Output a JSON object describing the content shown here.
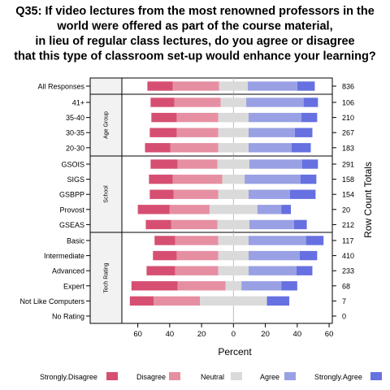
{
  "chart_data": {
    "type": "bar",
    "subtype": "diverging-stacked-likert",
    "title_lines": [
      "Q35: If video lectures from the most renowned professors in the",
      "world were offered as part of the course material,",
      "in lieu of regular class lectures, do you agree or disagree",
      "that this type of classroom set-up would enhance your learning?"
    ],
    "xlabel": "Percent",
    "right_axis_label": "Row Count Totals",
    "xlim": [
      -70,
      62
    ],
    "xticks": [
      60,
      40,
      20,
      0,
      20,
      40,
      60
    ],
    "xtick_values": [
      -60,
      -40,
      -20,
      0,
      20,
      40,
      60
    ],
    "legend_placement": "bottom",
    "series": [
      {
        "name": "Strongly.Disagree",
        "color": "#d64f73"
      },
      {
        "name": "Disagree",
        "color": "#e68fa3"
      },
      {
        "name": "Neutral",
        "color": "#dadada"
      },
      {
        "name": "Agree",
        "color": "#99a1e4"
      },
      {
        "name": "Strongly.Agree",
        "color": "#6670e0"
      }
    ],
    "panels": [
      {
        "label": "",
        "rows": [
          {
            "category": "All Responses",
            "count": "836",
            "values": [
              16,
              29,
              18,
              31,
              11
            ]
          }
        ]
      },
      {
        "label": "Age Group",
        "rows": [
          {
            "category": "41+",
            "count": "106",
            "values": [
              15,
              29,
              16,
              36,
              9
            ]
          },
          {
            "category": "35-40",
            "count": "210",
            "values": [
              16,
              26,
              19,
              33,
              10
            ]
          },
          {
            "category": "30-35",
            "count": "267",
            "values": [
              17,
              26,
              19,
              29,
              11
            ]
          },
          {
            "category": "20-30",
            "count": "183",
            "values": [
              16,
              30,
              19,
              27,
              12
            ]
          }
        ]
      },
      {
        "label": "School",
        "rows": [
          {
            "category": "GSOIS",
            "count": "291",
            "values": [
              17,
              25,
              20,
              33,
              10
            ]
          },
          {
            "category": "SIGS",
            "count": "158",
            "values": [
              15,
              31,
              14,
              35,
              10
            ]
          },
          {
            "category": "GSBPP",
            "count": "154",
            "values": [
              15,
              28,
              19,
              26,
              16
            ]
          },
          {
            "category": "Provost",
            "count": "20",
            "values": [
              20,
              25,
              30,
              15,
              6
            ]
          },
          {
            "category": "GSEAS",
            "count": "212",
            "values": [
              16,
              29,
              20,
              28,
              8
            ]
          }
        ]
      },
      {
        "label": "Tech Rating",
        "rows": [
          {
            "category": "Basic",
            "count": "117",
            "values": [
              13,
              27,
              19,
              36,
              11
            ]
          },
          {
            "category": "Intermediate",
            "count": "410",
            "values": [
              15,
              26,
              19,
              32,
              11
            ]
          },
          {
            "category": "Advanced",
            "count": "233",
            "values": [
              18,
              27,
              19,
              30,
              10
            ]
          },
          {
            "category": "Expert",
            "count": "68",
            "values": [
              29,
              30,
              10,
              25,
              10
            ]
          },
          {
            "category": "Not Like Computers",
            "count": "7",
            "values": [
              15,
              29,
              42,
              0,
              14
            ]
          },
          {
            "category": "No Rating",
            "count": "0",
            "values": [
              0,
              0,
              0,
              0,
              0
            ]
          }
        ]
      }
    ]
  }
}
